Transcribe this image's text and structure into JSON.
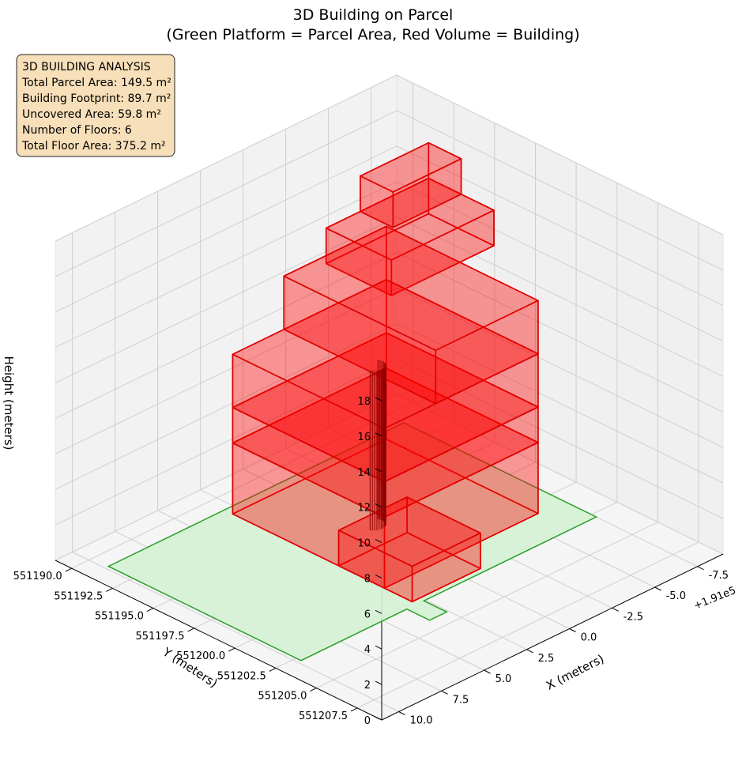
{
  "title": {
    "line1": "3D Building on Parcel",
    "line2": "(Green Platform = Parcel Area, Red Volume = Building)"
  },
  "info_box": {
    "heading": "3D BUILDING ANALYSIS",
    "lines": [
      "Total Parcel Area: 149.5 m²",
      "Building Footprint: 89.7 m²",
      "Uncovered Area: 59.8 m²",
      "Number of Floors: 6",
      "Total Floor Area: 375.2 m²"
    ],
    "colors": {
      "background": "#f7dfb9",
      "border": "#222222"
    }
  },
  "axes": {
    "x_label": "X (meters)",
    "y_label": "Y (meters)",
    "z_label": "Height (meters)",
    "x_ticks": [
      "-7.5",
      "-5.0",
      "-2.5",
      "0.0",
      "2.5",
      "5.0",
      "7.5",
      "10.0"
    ],
    "x_offset_label": "+1.91e5",
    "y_ticks": [
      "551190.0",
      "551192.5",
      "551195.0",
      "551197.5",
      "551200.0",
      "551202.5",
      "551205.0",
      "551207.5"
    ],
    "z_ticks": [
      "0",
      "2",
      "4",
      "6",
      "8",
      "10",
      "12",
      "14",
      "16",
      "18"
    ]
  },
  "chart_data": {
    "type": "3d-volume",
    "title": "3D Building on Parcel\n(Green Platform = Parcel Area, Red Volume = Building)",
    "xlabel": "X (meters)",
    "ylabel": "Y (meters)",
    "zlabel": "Height (meters)",
    "x_offset": 191000,
    "xlim": [
      -9,
      11
    ],
    "ylim": [
      551189,
      551209
    ],
    "zlim": [
      0,
      18
    ],
    "grid": true,
    "parcel": {
      "name": "Parcel Area",
      "color": "#2ca02c",
      "fill": "#d5f2d5",
      "polygon": [
        [
          -7.5,
          551202.8
        ],
        [
          2.6,
          551202.8
        ],
        [
          2.6,
          551204.2
        ],
        [
          3.6,
          551204.2
        ],
        [
          3.6,
          551202.8
        ],
        [
          9.8,
          551202.8
        ],
        [
          9.8,
          551191.0
        ],
        [
          -7.5,
          551191.0
        ]
      ]
    },
    "building": {
      "name": "Building",
      "color": "#e00000",
      "fill": "#ff0000",
      "floors": 6,
      "blocks": [
        {
          "x": [
            -6.0,
            3.0
          ],
          "y": [
            551191.5,
            551200.8
          ],
          "z": [
            0,
            4
          ]
        },
        {
          "x": [
            -1.0,
            3.0
          ],
          "y": [
            551198.0,
            551202.5
          ],
          "z": [
            0,
            2
          ]
        },
        {
          "x": [
            -6.0,
            3.0
          ],
          "y": [
            551191.5,
            551200.8
          ],
          "z": [
            4,
            6
          ]
        },
        {
          "x": [
            -6.0,
            3.0
          ],
          "y": [
            551191.5,
            551200.8
          ],
          "z": [
            6,
            9
          ]
        },
        {
          "x": [
            -6.0,
            0.0
          ],
          "y": [
            551191.5,
            551200.8
          ],
          "z": [
            9,
            12
          ]
        },
        {
          "x": [
            -8.0,
            -2.0
          ],
          "y": [
            551192.0,
            551196.0
          ],
          "z": [
            12,
            14
          ]
        },
        {
          "x": [
            -8.0,
            -4.0
          ],
          "y": [
            551192.0,
            551194.0
          ],
          "z": [
            14,
            16
          ]
        }
      ],
      "column": {
        "x": -0.5,
        "y": 551196.5,
        "radius": 0.5,
        "z": [
          0,
          9
        ]
      }
    }
  }
}
